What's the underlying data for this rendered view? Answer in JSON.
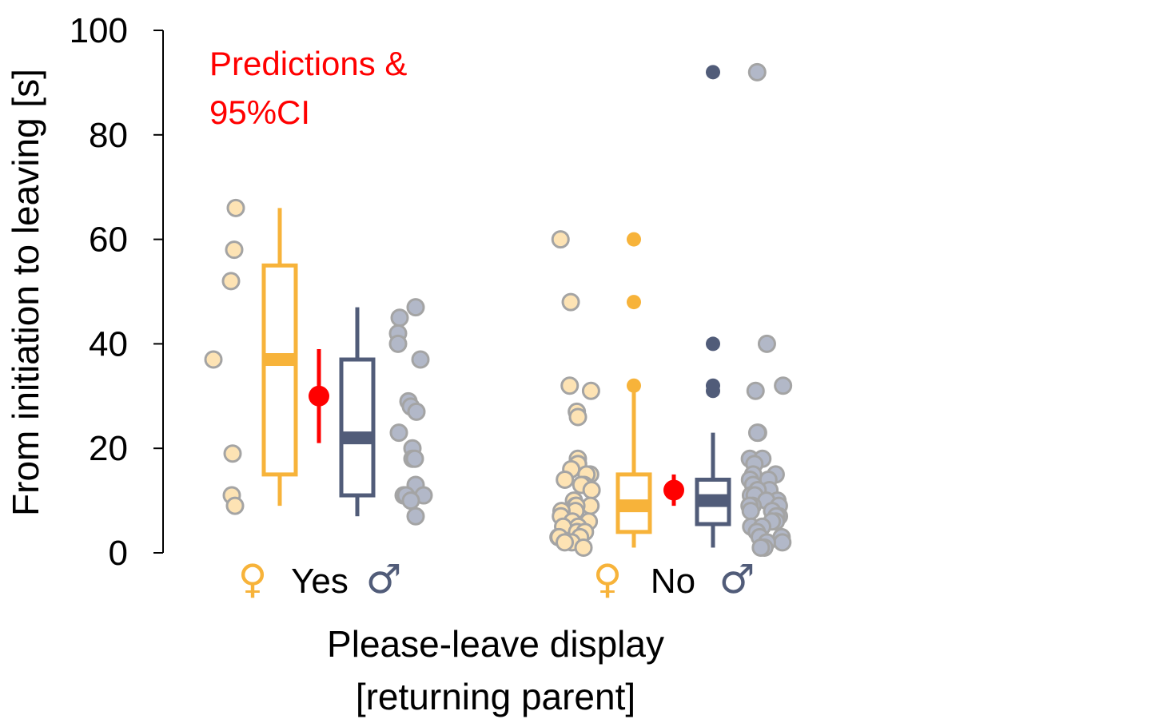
{
  "chart_data": {
    "type": "boxplot",
    "ylabel": "From initiation to leaving [s]",
    "xlabel_line1": "Please-leave display",
    "xlabel_line2": "[returning parent]",
    "ylim": [
      0,
      100
    ],
    "yticks": [
      0,
      20,
      40,
      60,
      80,
      100
    ],
    "annotation_line1": "Predictions &",
    "annotation_line2": "95%CI",
    "colors": {
      "female": "#f7b33a",
      "female_point": "#fde3b4",
      "male": "#515c79",
      "male_point": "#b2b8c8",
      "point_edge": "#a4a4a4",
      "prediction": "#ff0000"
    },
    "symbols": {
      "female": "♀",
      "male": "♂"
    },
    "groups": [
      {
        "label": "Yes",
        "female": {
          "box": {
            "whisker_low": 9,
            "q1": 15,
            "median": 37,
            "q3": 55,
            "whisker_high": 66
          },
          "outliers": [],
          "points": [
            37,
            66,
            58,
            52,
            19,
            11,
            9
          ]
        },
        "male": {
          "box": {
            "whisker_low": 7,
            "q1": 11,
            "median": 22,
            "q3": 37,
            "whisker_high": 47
          },
          "outliers": [],
          "points": [
            47,
            45,
            42,
            40,
            37,
            29,
            28,
            27,
            23,
            20,
            18,
            18,
            13,
            11,
            11,
            11,
            10,
            7
          ]
        },
        "prediction": {
          "estimate": 30,
          "lower": 21,
          "upper": 39
        }
      },
      {
        "label": "No",
        "female": {
          "box": {
            "whisker_low": 1,
            "q1": 4,
            "median": 9,
            "q3": 15,
            "whisker_high": 31
          },
          "outliers": [
            32,
            48,
            60
          ],
          "points": [
            60,
            48,
            32,
            31,
            27,
            26,
            18,
            17,
            17,
            16,
            15,
            15,
            14,
            13,
            13,
            12,
            10,
            9,
            9,
            9,
            8,
            8,
            7,
            6,
            6,
            5,
            5,
            4,
            4,
            3,
            3,
            3,
            2,
            2,
            1
          ]
        },
        "male": {
          "box": {
            "whisker_low": 1,
            "q1": 5.5,
            "median": 10,
            "q3": 14,
            "whisker_high": 23
          },
          "outliers": [
            31,
            32,
            40,
            92
          ],
          "points": [
            92,
            40,
            32,
            31,
            23,
            23,
            18,
            18,
            17,
            15,
            15,
            14,
            14,
            13,
            12,
            12,
            11,
            11,
            10,
            10,
            9,
            9,
            9,
            8,
            8,
            7,
            7,
            6,
            6,
            5,
            5,
            4,
            3,
            3,
            2,
            2,
            1,
            1
          ]
        },
        "prediction": {
          "estimate": 12,
          "lower": 9,
          "upper": 15
        }
      }
    ]
  }
}
